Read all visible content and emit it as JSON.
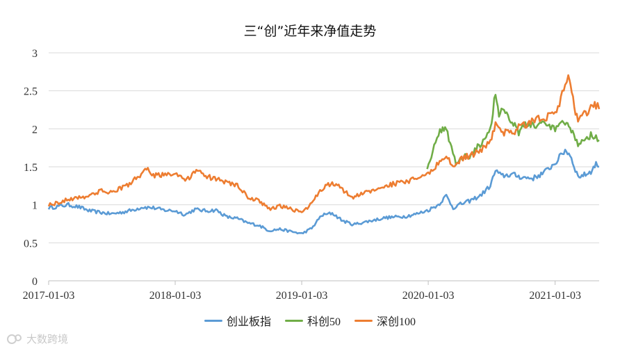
{
  "chart_data": {
    "type": "line",
    "title": "三“创”近年来净值走势",
    "xlabel": "",
    "ylabel": "",
    "ylim": [
      0,
      3
    ],
    "yticks": [
      "0",
      "0.5",
      "1",
      "1.5",
      "2",
      "2.5",
      "3"
    ],
    "xlim": [
      "2017-01-03",
      "2021-05-10"
    ],
    "xticks": [
      "2017-01-03",
      "2018-01-03",
      "2019-01-03",
      "2020-01-03",
      "2021-01-03"
    ],
    "grid": "horizontal",
    "legend_position": "bottom",
    "series": [
      {
        "name": "创业板指",
        "color": "#5B9BD5",
        "points": [
          [
            "2017-01-03",
            0.96
          ],
          [
            "2017-02-01",
            0.98
          ],
          [
            "2017-03-01",
            1.0
          ],
          [
            "2017-04-01",
            0.97
          ],
          [
            "2017-05-01",
            0.92
          ],
          [
            "2017-06-01",
            0.9
          ],
          [
            "2017-07-01",
            0.88
          ],
          [
            "2017-08-01",
            0.9
          ],
          [
            "2017-09-01",
            0.93
          ],
          [
            "2017-10-01",
            0.97
          ],
          [
            "2017-11-01",
            0.96
          ],
          [
            "2017-12-01",
            0.93
          ],
          [
            "2018-01-03",
            0.92
          ],
          [
            "2018-02-01",
            0.87
          ],
          [
            "2018-03-01",
            0.94
          ],
          [
            "2018-04-01",
            0.92
          ],
          [
            "2018-05-01",
            0.93
          ],
          [
            "2018-06-01",
            0.84
          ],
          [
            "2018-07-01",
            0.82
          ],
          [
            "2018-08-01",
            0.76
          ],
          [
            "2018-09-01",
            0.73
          ],
          [
            "2018-10-01",
            0.66
          ],
          [
            "2018-11-01",
            0.68
          ],
          [
            "2018-12-01",
            0.65
          ],
          [
            "2019-01-03",
            0.62
          ],
          [
            "2019-02-01",
            0.69
          ],
          [
            "2019-03-01",
            0.86
          ],
          [
            "2019-04-01",
            0.89
          ],
          [
            "2019-05-01",
            0.79
          ],
          [
            "2019-06-01",
            0.74
          ],
          [
            "2019-07-01",
            0.77
          ],
          [
            "2019-08-01",
            0.8
          ],
          [
            "2019-09-01",
            0.83
          ],
          [
            "2019-10-01",
            0.84
          ],
          [
            "2019-11-01",
            0.85
          ],
          [
            "2019-12-01",
            0.88
          ],
          [
            "2020-01-03",
            0.93
          ],
          [
            "2020-02-01",
            1.0
          ],
          [
            "2020-02-24",
            1.12
          ],
          [
            "2020-03-15",
            0.96
          ],
          [
            "2020-04-01",
            1.0
          ],
          [
            "2020-05-01",
            1.05
          ],
          [
            "2020-06-01",
            1.12
          ],
          [
            "2020-06-30",
            1.25
          ],
          [
            "2020-07-15",
            1.45
          ],
          [
            "2020-08-01",
            1.38
          ],
          [
            "2020-09-01",
            1.4
          ],
          [
            "2020-10-01",
            1.36
          ],
          [
            "2020-11-01",
            1.35
          ],
          [
            "2020-12-01",
            1.42
          ],
          [
            "2021-01-03",
            1.55
          ],
          [
            "2021-02-01",
            1.72
          ],
          [
            "2021-02-15",
            1.66
          ],
          [
            "2021-03-10",
            1.37
          ],
          [
            "2021-04-01",
            1.4
          ],
          [
            "2021-04-20",
            1.45
          ],
          [
            "2021-05-01",
            1.55
          ],
          [
            "2021-05-10",
            1.5
          ]
        ]
      },
      {
        "name": "科创50",
        "color": "#70AD47",
        "points": [
          [
            "2019-12-31",
            1.5
          ],
          [
            "2020-01-20",
            1.75
          ],
          [
            "2020-02-10",
            2.0
          ],
          [
            "2020-02-24",
            2.02
          ],
          [
            "2020-03-10",
            1.74
          ],
          [
            "2020-03-23",
            1.55
          ],
          [
            "2020-04-10",
            1.62
          ],
          [
            "2020-05-01",
            1.65
          ],
          [
            "2020-06-01",
            1.8
          ],
          [
            "2020-06-30",
            2.0
          ],
          [
            "2020-07-15",
            2.48
          ],
          [
            "2020-07-25",
            2.18
          ],
          [
            "2020-08-01",
            2.3
          ],
          [
            "2020-08-20",
            2.15
          ],
          [
            "2020-09-01",
            2.12
          ],
          [
            "2020-09-20",
            1.95
          ],
          [
            "2020-10-01",
            2.05
          ],
          [
            "2020-11-01",
            2.05
          ],
          [
            "2020-12-01",
            2.05
          ],
          [
            "2021-01-03",
            2.0
          ],
          [
            "2021-02-01",
            2.08
          ],
          [
            "2021-02-15",
            2.0
          ],
          [
            "2021-03-10",
            1.8
          ],
          [
            "2021-04-01",
            1.88
          ],
          [
            "2021-04-20",
            1.92
          ],
          [
            "2021-05-01",
            1.9
          ],
          [
            "2021-05-10",
            1.85
          ]
        ]
      },
      {
        "name": "深创100",
        "color": "#ED7D31",
        "points": [
          [
            "2017-01-03",
            1.0
          ],
          [
            "2017-02-01",
            1.03
          ],
          [
            "2017-03-01",
            1.07
          ],
          [
            "2017-04-01",
            1.1
          ],
          [
            "2017-05-01",
            1.12
          ],
          [
            "2017-06-01",
            1.18
          ],
          [
            "2017-07-01",
            1.17
          ],
          [
            "2017-08-01",
            1.22
          ],
          [
            "2017-09-01",
            1.3
          ],
          [
            "2017-10-01",
            1.42
          ],
          [
            "2017-10-20",
            1.47
          ],
          [
            "2017-11-01",
            1.38
          ],
          [
            "2017-12-01",
            1.4
          ],
          [
            "2018-01-03",
            1.42
          ],
          [
            "2018-02-01",
            1.3
          ],
          [
            "2018-03-01",
            1.45
          ],
          [
            "2018-04-01",
            1.38
          ],
          [
            "2018-05-01",
            1.33
          ],
          [
            "2018-06-01",
            1.3
          ],
          [
            "2018-07-01",
            1.25
          ],
          [
            "2018-08-01",
            1.1
          ],
          [
            "2018-09-01",
            1.05
          ],
          [
            "2018-10-01",
            0.95
          ],
          [
            "2018-11-01",
            0.98
          ],
          [
            "2018-12-01",
            0.95
          ],
          [
            "2019-01-03",
            0.9
          ],
          [
            "2019-02-01",
            1.02
          ],
          [
            "2019-03-01",
            1.2
          ],
          [
            "2019-04-01",
            1.3
          ],
          [
            "2019-05-01",
            1.2
          ],
          [
            "2019-06-01",
            1.1
          ],
          [
            "2019-07-01",
            1.15
          ],
          [
            "2019-08-01",
            1.2
          ],
          [
            "2019-09-01",
            1.25
          ],
          [
            "2019-10-01",
            1.28
          ],
          [
            "2019-11-01",
            1.3
          ],
          [
            "2019-12-01",
            1.35
          ],
          [
            "2020-01-03",
            1.4
          ],
          [
            "2020-02-01",
            1.55
          ],
          [
            "2020-02-24",
            1.65
          ],
          [
            "2020-03-15",
            1.5
          ],
          [
            "2020-04-01",
            1.58
          ],
          [
            "2020-05-01",
            1.65
          ],
          [
            "2020-06-01",
            1.7
          ],
          [
            "2020-06-30",
            1.85
          ],
          [
            "2020-07-15",
            2.05
          ],
          [
            "2020-08-01",
            1.95
          ],
          [
            "2020-09-01",
            1.95
          ],
          [
            "2020-10-01",
            2.05
          ],
          [
            "2020-11-01",
            2.1
          ],
          [
            "2020-12-01",
            2.15
          ],
          [
            "2021-01-03",
            2.2
          ],
          [
            "2021-02-01",
            2.55
          ],
          [
            "2021-02-10",
            2.68
          ],
          [
            "2021-02-20",
            2.45
          ],
          [
            "2021-03-10",
            2.1
          ],
          [
            "2021-04-01",
            2.2
          ],
          [
            "2021-04-20",
            2.3
          ],
          [
            "2021-05-01",
            2.32
          ],
          [
            "2021-05-10",
            2.26
          ]
        ]
      }
    ]
  },
  "watermark": "大数跨境"
}
